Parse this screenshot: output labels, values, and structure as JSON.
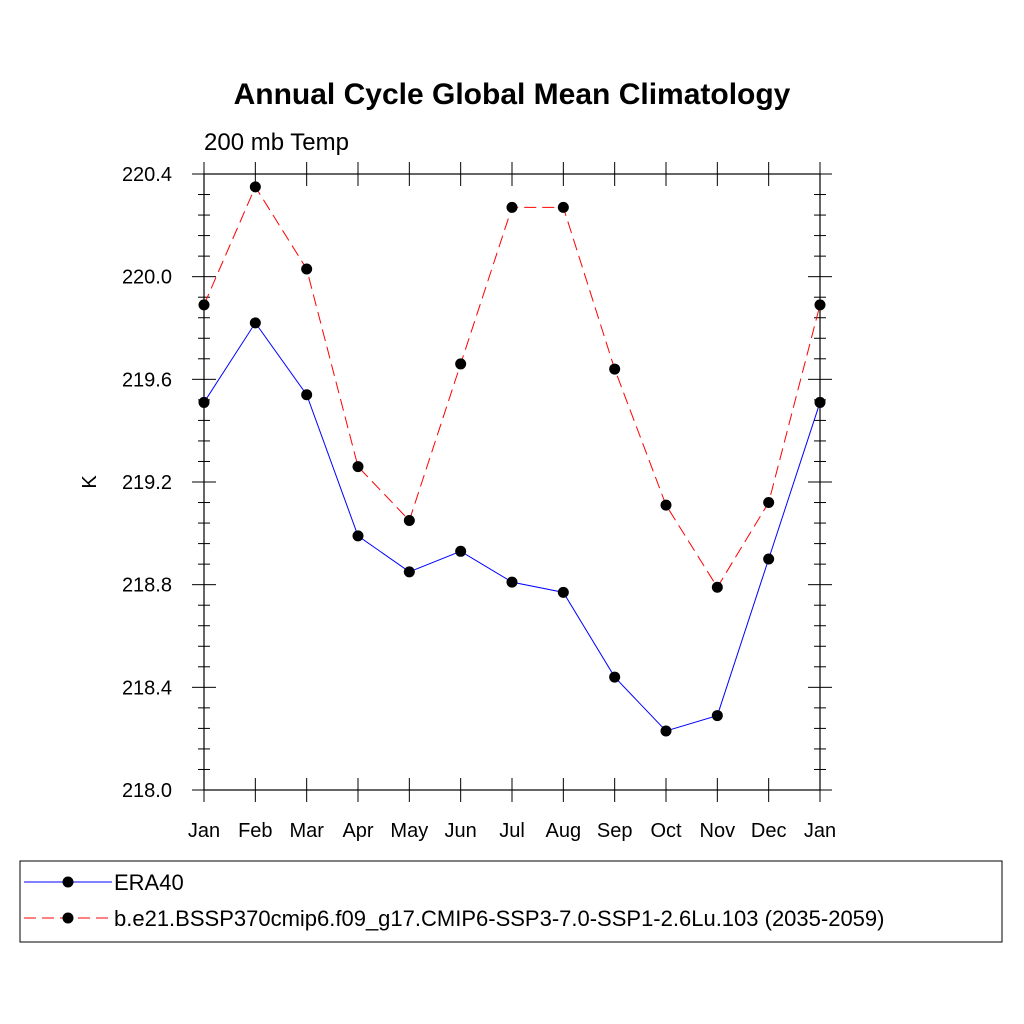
{
  "chart_data": {
    "type": "line",
    "title": "Annual Cycle Global Mean Climatology",
    "subtitle": "200 mb Temp",
    "ylabel": "K",
    "xlabel": "",
    "categories": [
      "Jan",
      "Feb",
      "Mar",
      "Apr",
      "May",
      "Jun",
      "Jul",
      "Aug",
      "Sep",
      "Oct",
      "Nov",
      "Dec",
      "Jan"
    ],
    "ylim": [
      218.0,
      220.4
    ],
    "yticks": [
      "218.0",
      "218.4",
      "218.8",
      "219.2",
      "219.6",
      "220.0",
      "220.4"
    ],
    "grid": false,
    "legend_position": "bottom",
    "series": [
      {
        "name": "ERA40",
        "color": "#0000ff",
        "dash": "solid",
        "values": [
          219.51,
          219.82,
          219.54,
          218.99,
          218.85,
          218.93,
          218.81,
          218.77,
          218.44,
          218.23,
          218.29,
          218.9,
          219.51
        ]
      },
      {
        "name": "b.e21.BSSP370cmip6.f09_g17.CMIP6-SSP3-7.0-SSP1-2.6Lu.103 (2035-2059)",
        "color": "#ff0000",
        "dash": "dashed",
        "values": [
          219.89,
          220.35,
          220.03,
          219.26,
          219.05,
          219.66,
          220.27,
          220.27,
          219.64,
          219.11,
          218.79,
          219.12,
          219.89
        ]
      }
    ]
  }
}
